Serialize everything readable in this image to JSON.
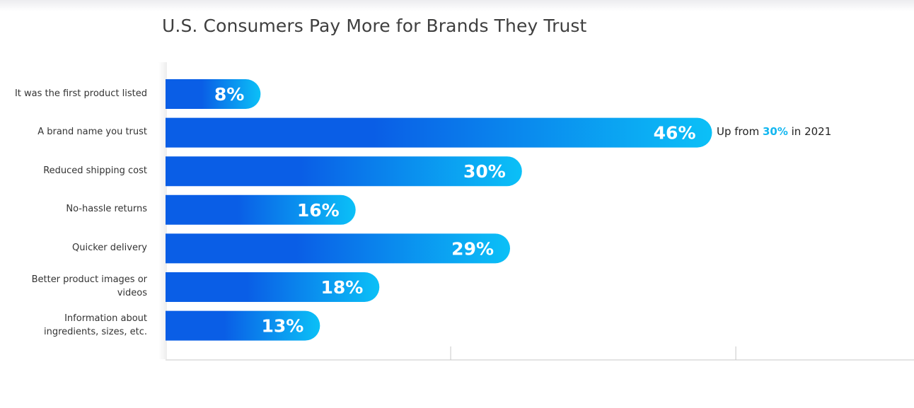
{
  "chart_data": {
    "type": "bar",
    "orientation": "horizontal",
    "title": "U.S. Consumers Pay More for Brands They Trust",
    "categories": [
      [
        "It was the first product listed"
      ],
      [
        "A brand name you trust"
      ],
      [
        "Reduced shipping cost"
      ],
      [
        "No-hassle returns"
      ],
      [
        "Quicker delivery"
      ],
      [
        "Better product images or",
        "videos"
      ],
      [
        "Information about",
        "ingredients, sizes, etc."
      ]
    ],
    "values": [
      8,
      46,
      30,
      16,
      29,
      18,
      13
    ],
    "value_labels": [
      "8%",
      "46%",
      "30%",
      "16%",
      "29%",
      "18%",
      "13%"
    ],
    "unit": "%",
    "xlim": [
      0,
      63
    ],
    "grid": false,
    "annotation": {
      "prefix": "Up from ",
      "highlight": "30%",
      "suffix": " in 2021"
    },
    "colors": {
      "bar_start": "#0a5ee6",
      "bar_end": "#0bc0f7",
      "value_text": "#ffffff",
      "axis": "#c8c8c8",
      "highlight": "#14b7f0"
    }
  }
}
